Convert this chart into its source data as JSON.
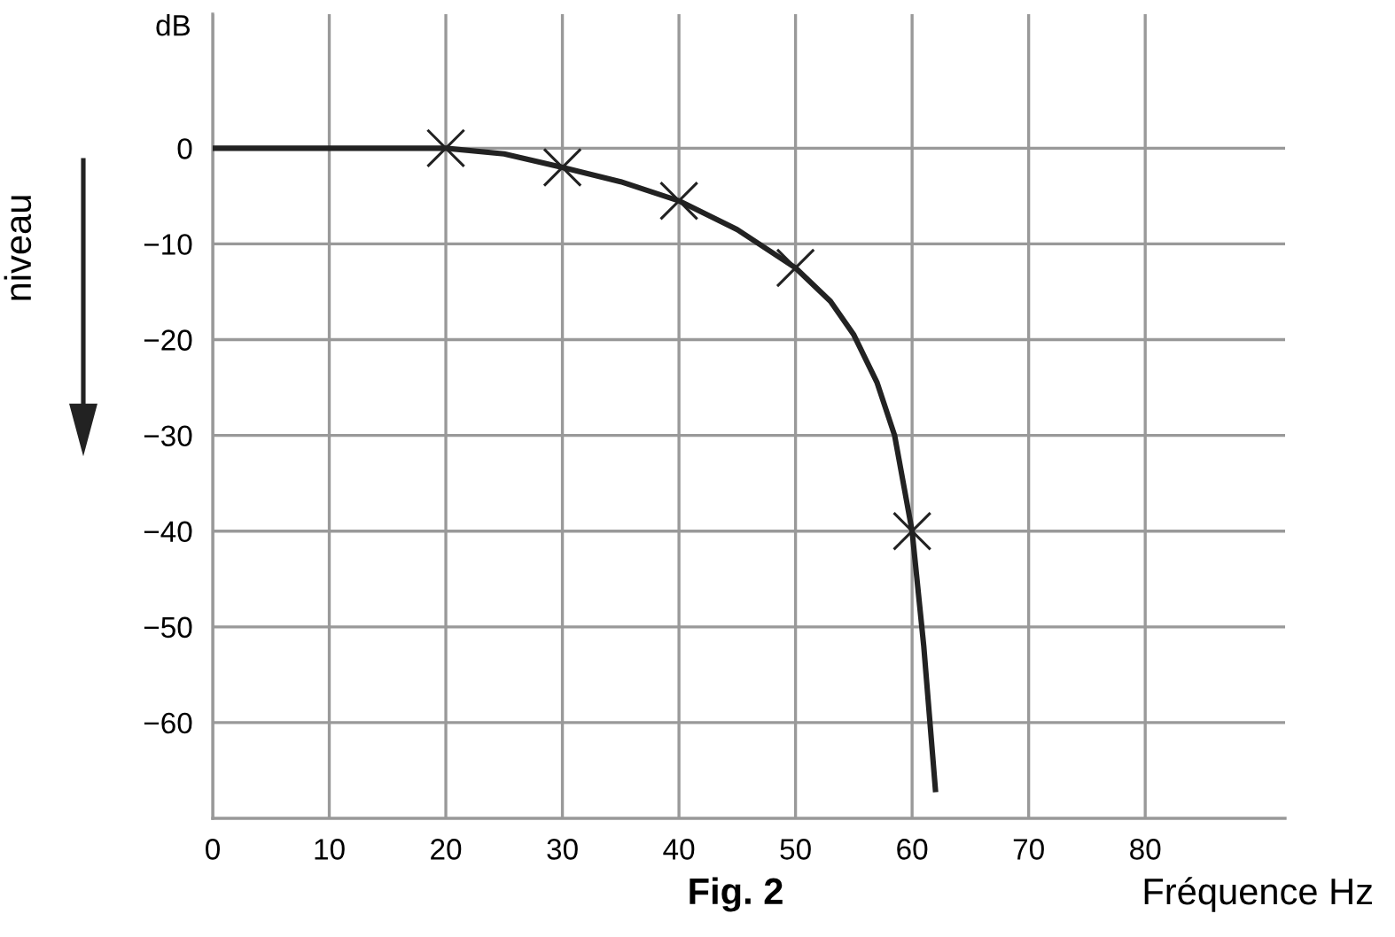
{
  "chart_data": {
    "type": "line",
    "title": "Fig. 2",
    "xlabel": "Fréquence Hz",
    "ylabel": "dB",
    "annotations": [
      "niveau"
    ],
    "xlim": [
      0,
      92
    ],
    "xticks": [
      0,
      10,
      20,
      30,
      40,
      50,
      60,
      70,
      80
    ],
    "ylim": [
      -70,
      14
    ],
    "yticks": [
      0,
      {
        "value": -10,
        "label": "−10"
      },
      {
        "value": -20,
        "label": "−20"
      },
      {
        "value": -30,
        "label": "−30"
      },
      {
        "value": -40,
        "label": "−40"
      },
      {
        "value": -50,
        "label": "−50"
      },
      {
        "value": -60,
        "label": "−60"
      }
    ],
    "grid": true,
    "series": [
      {
        "color": "#222222",
        "marker": "none",
        "line_style": "solid",
        "x": [
          0,
          20,
          25,
          30,
          35,
          40,
          45,
          50,
          53,
          55,
          57,
          58.5,
          60,
          61,
          62
        ],
        "values": [
          0,
          0,
          -0.6,
          -2,
          -3.5,
          -5.5,
          -8.5,
          -12.5,
          -16,
          -19.5,
          -24.5,
          -30,
          -40,
          -52,
          -67
        ]
      },
      {
        "type": "scatter",
        "color": "#222222",
        "marker": "cross",
        "x": [
          20,
          30,
          40,
          50,
          60
        ],
        "values": [
          0,
          -2,
          -5.5,
          -12.5,
          -40
        ]
      }
    ]
  }
}
